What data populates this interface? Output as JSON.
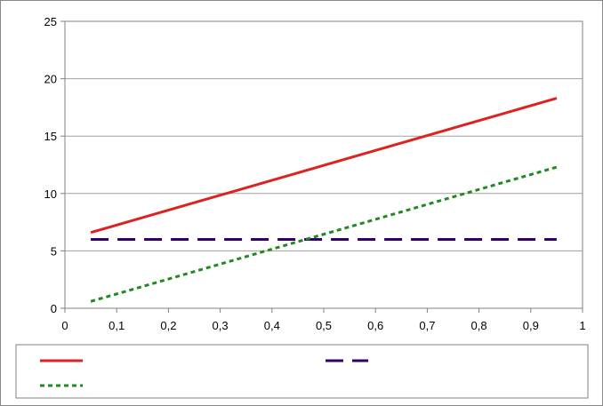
{
  "chart_data": {
    "type": "line",
    "title": "",
    "xlabel": "",
    "ylabel": "",
    "xlim": [
      0,
      1
    ],
    "ylim": [
      0,
      25
    ],
    "x_ticks": [
      "0",
      "0,1",
      "0,2",
      "0,3",
      "0,4",
      "0,5",
      "0,6",
      "0,7",
      "0,8",
      "0,9",
      "1"
    ],
    "y_ticks": [
      "0",
      "5",
      "10",
      "15",
      "20",
      "25"
    ],
    "grid": true,
    "legend_position": "bottom",
    "series": [
      {
        "color": "#dd2222",
        "style": "solid",
        "x": [
          0.05,
          0.95
        ],
        "y": [
          6.6,
          18.3
        ]
      },
      {
        "color": "#330066",
        "style": "dashed",
        "x": [
          0.05,
          0.95
        ],
        "y": [
          6.0,
          6.0
        ]
      },
      {
        "color": "#228822",
        "style": "dotted",
        "x": [
          0.05,
          0.95
        ],
        "y": [
          0.6,
          12.3
        ]
      }
    ]
  }
}
